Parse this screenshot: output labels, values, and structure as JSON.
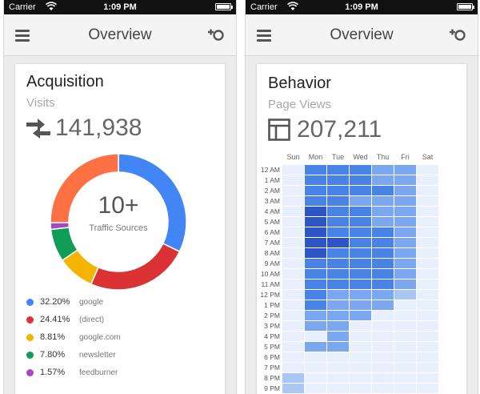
{
  "status": {
    "carrier": "Carrier",
    "time": "1:09 PM"
  },
  "left": {
    "nav_title": "Overview",
    "card_title": "Acquisition",
    "metric_label": "Visits",
    "metric_value": "141,938",
    "center_value": "10+",
    "center_label": "Traffic Sources",
    "legend": [
      {
        "pct": "32.20%",
        "label": "google",
        "color": "#4285f4"
      },
      {
        "pct": "24.41%",
        "label": "(direct)",
        "color": "#db3236"
      },
      {
        "pct": "8.81%",
        "label": "google.com",
        "color": "#f4b400"
      },
      {
        "pct": "7.80%",
        "label": "newsletter",
        "color": "#0f9d58"
      },
      {
        "pct": "1.57%",
        "label": "feedburner",
        "color": "#ab47bc"
      }
    ]
  },
  "right": {
    "nav_title": "Overview",
    "card_title": "Behavior",
    "metric_label": "Page Views",
    "metric_value": "207,211",
    "days": [
      "Sun",
      "Mon",
      "Tue",
      "Wed",
      "Thu",
      "Fri",
      "Sat"
    ],
    "hours": [
      "12 AM",
      "1 AM",
      "2 AM",
      "3 AM",
      "4 AM",
      "5 AM",
      "6 AM",
      "7 AM",
      "8 AM",
      "9 AM",
      "10 AM",
      "11 AM",
      "12 PM",
      "1 PM",
      "2 PM",
      "3 PM",
      "4 PM",
      "5 PM",
      "6 PM",
      "7 PM",
      "8 PM",
      "9 PM"
    ]
  },
  "chart_data": [
    {
      "type": "pie",
      "categories": [
        "google",
        "(direct)",
        "google.com",
        "newsletter",
        "feedburner"
      ],
      "values": [
        32.2,
        24.41,
        8.81,
        7.8,
        1.57
      ],
      "colors": [
        "#4285f4",
        "#db3236",
        "#f4b400",
        "#0f9d58",
        "#ab47bc",
        "#ff7043"
      ]
    },
    {
      "type": "heatmap",
      "x": [
        "Sun",
        "Mon",
        "Tue",
        "Wed",
        "Thu",
        "Fri",
        "Sat"
      ],
      "y": [
        "12 AM",
        "1 AM",
        "2 AM",
        "3 AM",
        "4 AM",
        "5 AM",
        "6 AM",
        "7 AM",
        "8 AM",
        "9 AM",
        "10 AM",
        "11 AM",
        "12 PM",
        "1 PM",
        "2 PM",
        "3 PM",
        "4 PM",
        "5 PM",
        "6 PM",
        "7 PM",
        "8 PM",
        "9 PM"
      ],
      "values": [
        [
          0,
          3,
          3,
          3,
          2,
          2,
          0
        ],
        [
          0,
          3,
          3,
          3,
          2,
          2,
          0
        ],
        [
          0,
          3,
          3,
          3,
          3,
          2,
          0
        ],
        [
          0,
          3,
          3,
          2,
          2,
          2,
          0
        ],
        [
          0,
          4,
          3,
          3,
          2,
          2,
          0
        ],
        [
          0,
          4,
          3,
          3,
          2,
          2,
          0
        ],
        [
          0,
          4,
          3,
          3,
          3,
          2,
          0
        ],
        [
          0,
          4,
          4,
          3,
          3,
          2,
          0
        ],
        [
          0,
          4,
          3,
          3,
          3,
          2,
          0
        ],
        [
          0,
          3,
          3,
          3,
          3,
          2,
          0
        ],
        [
          0,
          3,
          3,
          3,
          3,
          2,
          0
        ],
        [
          0,
          3,
          3,
          3,
          3,
          2,
          0
        ],
        [
          0,
          3,
          2,
          2,
          2,
          1,
          0
        ],
        [
          0,
          3,
          2,
          2,
          2,
          0,
          0
        ],
        [
          0,
          2,
          2,
          2,
          0,
          0,
          0
        ],
        [
          0,
          2,
          2,
          0,
          0,
          0,
          0
        ],
        [
          0,
          0,
          2,
          0,
          0,
          0,
          0
        ],
        [
          0,
          2,
          2,
          0,
          0,
          0,
          0
        ],
        [
          0,
          0,
          0,
          0,
          0,
          0,
          0
        ],
        [
          0,
          0,
          0,
          0,
          0,
          0,
          0
        ],
        [
          1,
          0,
          0,
          0,
          0,
          0,
          0
        ],
        [
          1,
          0,
          0,
          0,
          0,
          0,
          0
        ]
      ],
      "colors": [
        "#e8f0fd",
        "#aac6f5",
        "#7ba7f0",
        "#4a83e6",
        "#2d55c4"
      ]
    }
  ]
}
